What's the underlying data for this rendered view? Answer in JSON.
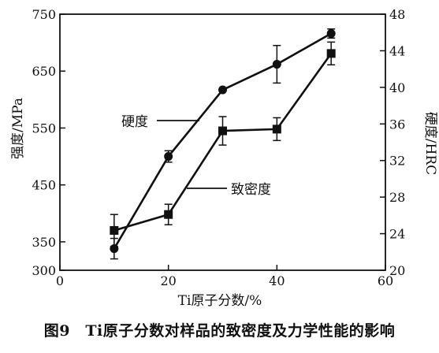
{
  "caption": "图9　Ti原子分数对样品的致密度及力学性能的影响",
  "chart_data": {
    "type": "line",
    "title": "",
    "xlabel": "Ti原子分数/%",
    "ylabel": "强度/MPa",
    "y2label": "硬度/HRC",
    "xlim": [
      0,
      60
    ],
    "ylim": [
      300,
      750
    ],
    "y2lim": [
      20,
      48
    ],
    "xticks": [
      0,
      20,
      40,
      60
    ],
    "yticks": [
      300,
      350,
      450,
      550,
      650,
      750
    ],
    "y2ticks": [
      20,
      24,
      28,
      32,
      36,
      40,
      44,
      48
    ],
    "grid": false,
    "series": [
      {
        "name": "硬度",
        "marker": "circle",
        "axis": "left",
        "x": [
          10,
          20,
          30,
          40,
          50
        ],
        "y": [
          338,
          500,
          617,
          662,
          716
        ],
        "err": [
          18,
          10,
          0,
          33,
          8
        ]
      },
      {
        "name": "致密度",
        "marker": "square",
        "axis": "left",
        "x": [
          10,
          20,
          30,
          40,
          50
        ],
        "y": [
          370,
          398,
          545,
          548,
          681
        ],
        "err": [
          28,
          18,
          25,
          20,
          20
        ]
      }
    ],
    "annotations": [
      {
        "text": "硬度",
        "series": "硬度"
      },
      {
        "text": "致密度",
        "series": "致密度"
      }
    ]
  }
}
